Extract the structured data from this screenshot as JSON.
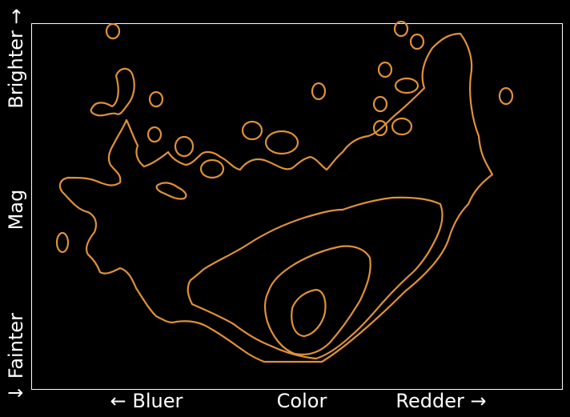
{
  "chart_data": {
    "type": "contour",
    "title": "",
    "xlabel": "Color",
    "x_left_label": "← Bluer",
    "x_right_label": "Redder →",
    "ylabel": "Mag",
    "y_bottom_label": "↓ Fainter",
    "y_top_label": "Brighter →",
    "ticks_shown": false,
    "grid": false,
    "legend": "none",
    "contour_levels": 4,
    "colors": {
      "background": "#000000",
      "frame": "#ffffff",
      "contour": "#e0913a",
      "text": "#ffffff"
    }
  }
}
